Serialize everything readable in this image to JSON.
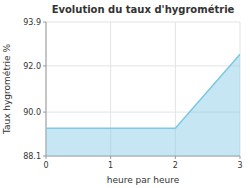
{
  "chart_data": {
    "type": "area",
    "title": "Evolution du taux d'hygrométrie",
    "x_label": "heure par heure",
    "y_label": "Taux hygrométrie %",
    "x": [
      0,
      2,
      3
    ],
    "values": [
      89.3,
      89.3,
      92.5
    ],
    "color": "#7ec8e3",
    "xlim": [
      0,
      3
    ],
    "ylim": [
      88.1,
      93.9
    ],
    "xticks": [
      0,
      1,
      2,
      3
    ],
    "yticks": [
      88.1,
      {
        "value": 90.0,
        "label": "90.0"
      },
      {
        "value": 92.0,
        "label": "92.0"
      },
      93.9
    ],
    "grid": true
  }
}
